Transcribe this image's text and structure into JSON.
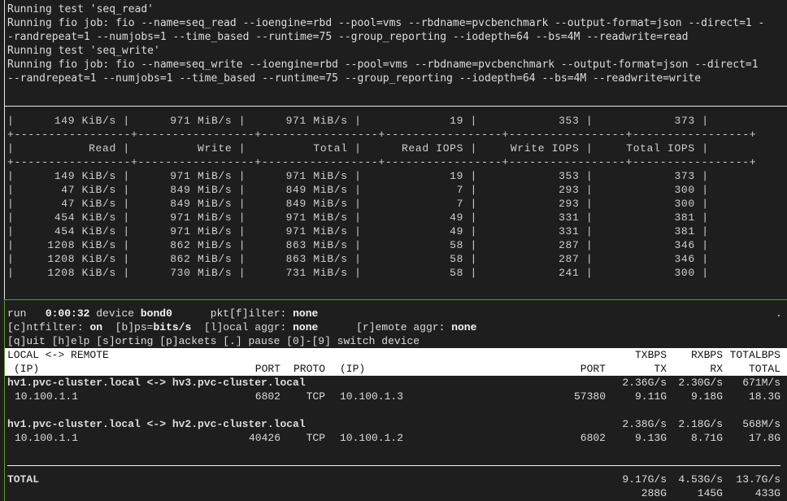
{
  "top_pane": {
    "lines": [
      "Running test 'seq_read'",
      "Running fio job: fio --name=seq_read --ioengine=rbd --pool=vms --rbdname=pvcbenchmark --output-format=json --direct=1 -",
      "-randrepeat=1 --numjobs=1 --time_based --runtime=75 --group_reporting --iodepth=64 --bs=4M --readwrite=read",
      "Running test 'seq_write'",
      "Running fio job: fio --name=seq_write --ioengine=rbd --pool=vms --rbdname=pvcbenchmark --output-format=json --direct=1",
      "--randrepeat=1 --numjobs=1 --time_based --runtime=75 --group_reporting --iodepth=64 --bs=4M --readwrite=write"
    ]
  },
  "table_pane": {
    "first_row": [
      "149 KiB/s",
      "971 MiB/s",
      "971 MiB/s",
      "19",
      "353",
      "373"
    ],
    "headers": [
      "Read",
      "Write",
      "Total",
      "Read IOPS",
      "Write IOPS",
      "Total IOPS"
    ],
    "rows": [
      [
        "149 KiB/s",
        "971 MiB/s",
        "971 MiB/s",
        "19",
        "353",
        "373"
      ],
      [
        "47 KiB/s",
        "849 MiB/s",
        "849 MiB/s",
        "7",
        "293",
        "300"
      ],
      [
        "47 KiB/s",
        "849 MiB/s",
        "849 MiB/s",
        "7",
        "293",
        "300"
      ],
      [
        "454 KiB/s",
        "971 MiB/s",
        "971 MiB/s",
        "49",
        "331",
        "381"
      ],
      [
        "454 KiB/s",
        "971 MiB/s",
        "971 MiB/s",
        "49",
        "331",
        "381"
      ],
      [
        "1208 KiB/s",
        "862 MiB/s",
        "863 MiB/s",
        "58",
        "287",
        "346"
      ],
      [
        "1208 KiB/s",
        "862 MiB/s",
        "863 MiB/s",
        "58",
        "287",
        "346"
      ],
      [
        "1208 KiB/s",
        "730 MiB/s",
        "731 MiB/s",
        "58",
        "241",
        "300"
      ]
    ]
  },
  "iftop": {
    "status": {
      "run_label": "run",
      "elapsed": "0:00:32",
      "device_label": "device",
      "device": "bond0",
      "pktfilter_label": "pkt[f]ilter:",
      "pktfilter": "none",
      "dot": ".",
      "cntfilter_label": "[c]ntfilter:",
      "cntfilter": "on",
      "bps_label": "[b]ps=",
      "bps": "bits/s",
      "local_aggr_label": "[l]ocal aggr:",
      "local_aggr": "none",
      "remote_aggr_label": "[r]emote aggr:",
      "remote_aggr": "none",
      "help_line": "[q]uit [h]elp [s]orting [p]ackets [.] pause [0]-[9] switch device"
    },
    "header": {
      "local_remote": "LOCAL <-> REMOTE",
      "txbps": "TXBPS",
      "rxbps": "RXBPS",
      "totalbps": "TOTALBPS",
      "ip": "(IP)",
      "port": "PORT",
      "proto": "PROTO",
      "remote_ip": "(IP)",
      "remote_port": "PORT",
      "tx": "TX",
      "rx": "RX",
      "total": "TOTAL"
    },
    "connections": [
      {
        "pair": "hv1.pvc-cluster.local <-> hv3.pvc-cluster.local",
        "txbps": "2.36G/s",
        "rxbps": "2.30G/s",
        "totalbps": "671M/s",
        "local_ip": "10.100.1.1",
        "local_port": "6802",
        "proto": "TCP",
        "remote_ip": "10.100.1.3",
        "remote_port": "57380",
        "tx": "9.11G",
        "rx": "9.18G",
        "total": "18.3G"
      },
      {
        "pair": "hv1.pvc-cluster.local <-> hv2.pvc-cluster.local",
        "txbps": "2.38G/s",
        "rxbps": "2.18G/s",
        "totalbps": "568M/s",
        "local_ip": "10.100.1.1",
        "local_port": "40426",
        "proto": "TCP",
        "remote_ip": "10.100.1.2",
        "remote_port": "6802",
        "tx": "9.13G",
        "rx": "8.71G",
        "total": "17.8G"
      }
    ],
    "total": {
      "label": "TOTAL",
      "txbps": "9.17G/s",
      "rxbps": "4.53G/s",
      "totalbps": "13.7G/s",
      "tx": "288G",
      "rx": "145G",
      "total": "433G"
    }
  },
  "colors": {
    "background": "#1e1e1e",
    "pane_border": "#e8e8e8",
    "active_pane_border": "#5f9a2c",
    "header_bg": "#ffffff"
  }
}
